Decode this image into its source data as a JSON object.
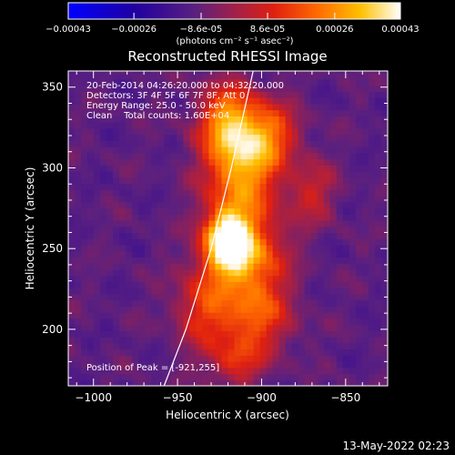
{
  "chart_data": {
    "type": "heatmap",
    "title": "Reconstructed RHESSI Image",
    "xlabel": "Heliocentric X (arcsec)",
    "ylabel": "Heliocentric Y (arcsec)",
    "xlim": [
      -1015,
      -825
    ],
    "ylim": [
      165,
      360
    ],
    "xticks": [
      -1000,
      -950,
      -900,
      -850
    ],
    "yticks": [
      200,
      250,
      300,
      350
    ],
    "colorbar": {
      "unit_label": "(photons cm⁻² s⁻¹ asec⁻²)",
      "range": [
        -0.00043,
        0.00043
      ],
      "ticks": [
        -0.00043,
        -0.00026,
        -8.6e-05,
        8.6e-05,
        0.00026,
        0.00043
      ],
      "tick_labels": [
        "-0.00043",
        "-0.00026",
        "-8.6e-05",
        "8.6e-05",
        "0.00026",
        "0.00043"
      ]
    },
    "annotations": {
      "time_range": "20-Feb-2014 04:26:20.000 to 04:32:20.000",
      "detectors": "Detectors: 3F 4F 5F 6F 7F 8F, Att 0",
      "energy": "Energy Range: 25.0 - 50.0 keV",
      "algorithm": "Clean    Total counts: 1.60E+04",
      "peak": "Position of Peak = [-921,255]"
    },
    "peak": [
      -921,
      255
    ],
    "limb_curve": [
      [
        -958,
        165
      ],
      [
        -945,
        200
      ],
      [
        -930,
        250
      ],
      [
        -918,
        300
      ],
      [
        -905,
        360
      ]
    ],
    "sources": [
      {
        "x": -921,
        "y": 255,
        "amplitude": 1.0,
        "sx": 10,
        "sy": 14
      },
      {
        "x": -905,
        "y": 242,
        "amplitude": 0.6,
        "sx": 14,
        "sy": 22
      },
      {
        "x": -912,
        "y": 300,
        "amplitude": 0.7,
        "sx": 15,
        "sy": 20
      },
      {
        "x": -920,
        "y": 330,
        "amplitude": 0.6,
        "sx": 12,
        "sy": 16
      },
      {
        "x": -895,
        "y": 322,
        "amplitude": 0.45,
        "sx": 12,
        "sy": 14
      },
      {
        "x": -935,
        "y": 215,
        "amplitude": 0.4,
        "sx": 12,
        "sy": 18
      },
      {
        "x": -905,
        "y": 205,
        "amplitude": 0.4,
        "sx": 16,
        "sy": 14
      },
      {
        "x": -915,
        "y": 180,
        "amplitude": 0.35,
        "sx": 12,
        "sy": 10
      },
      {
        "x": -870,
        "y": 285,
        "amplitude": 0.3,
        "sx": 10,
        "sy": 14
      }
    ]
  },
  "footer": {
    "date": "13-May-2022 02:23"
  }
}
